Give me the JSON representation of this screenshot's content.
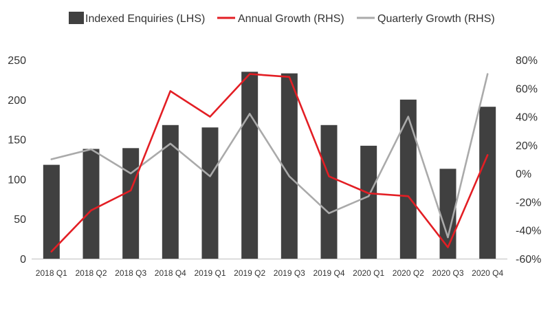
{
  "chart_data": {
    "type": "bar",
    "categories": [
      "2018 Q1",
      "2018 Q2",
      "2018 Q3",
      "2018 Q4",
      "2019 Q1",
      "2019 Q2",
      "2019 Q3",
      "2019 Q4",
      "2020 Q1",
      "2020 Q2",
      "2020 Q3",
      "2020 Q4"
    ],
    "series": [
      {
        "name": "Indexed Enquiries (LHS)",
        "type": "bar",
        "axis": "left",
        "color": "#404040",
        "values": [
          118,
          138,
          139,
          168,
          165,
          235,
          233,
          168,
          142,
          200,
          113,
          191
        ]
      },
      {
        "name": "Annual Growth (RHS)",
        "type": "line",
        "axis": "right",
        "color": "#e31e24",
        "values": [
          -55,
          -26,
          -12,
          58,
          40,
          70,
          68,
          -2,
          -14,
          -16,
          -52,
          13
        ]
      },
      {
        "name": "Quarterly Growth (RHS)",
        "type": "line",
        "axis": "right",
        "color": "#aaaaaa",
        "values": [
          10,
          17,
          0,
          21,
          -2,
          42,
          -2,
          -28,
          -16,
          40,
          -45,
          70
        ]
      }
    ],
    "left_axis": {
      "ylim": [
        0,
        250
      ],
      "ticks": [
        0,
        50,
        100,
        150,
        200,
        250
      ],
      "tick_labels": [
        "0",
        "50",
        "100",
        "150",
        "200",
        "250"
      ]
    },
    "right_axis": {
      "ylim": [
        -60,
        80
      ],
      "ticks": [
        -60,
        -40,
        -20,
        0,
        20,
        40,
        60,
        80
      ],
      "tick_labels": [
        "-60%",
        "-40%",
        "-20%",
        "0%",
        "20%",
        "40%",
        "60%",
        "80%"
      ]
    },
    "title": "",
    "xlabel": "",
    "ylabel": "",
    "legend_position": "top",
    "grid": false
  }
}
